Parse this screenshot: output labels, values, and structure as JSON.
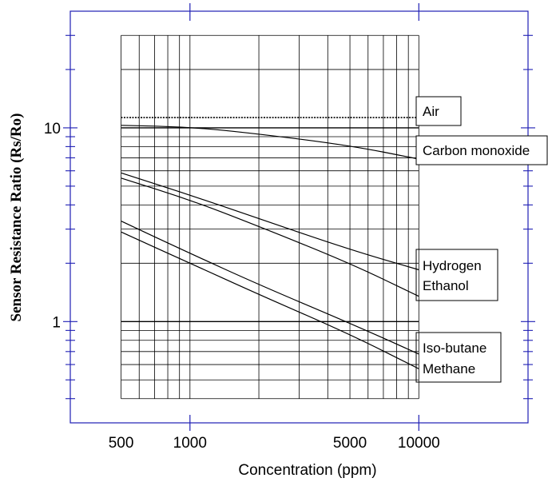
{
  "chart_data": {
    "type": "line",
    "title": "",
    "xlabel": "Concentration  (ppm)",
    "ylabel": "Sensor  Resistance  Ratio  (Rs/Ro)",
    "x_scale": "log",
    "y_scale": "log",
    "xlim": [
      300,
      30000
    ],
    "ylim": [
      0.3,
      40
    ],
    "x_tick_labels": [
      "500",
      "1000",
      "5000",
      "10000"
    ],
    "x_ticks": [
      500,
      1000,
      5000,
      10000
    ],
    "y_tick_labels": [
      "1",
      "10"
    ],
    "y_ticks": [
      1,
      10
    ],
    "grid": true,
    "legend": "labels at line ends (right)",
    "series": [
      {
        "name": "Air",
        "style": "dotted",
        "x": [
          500,
          10000
        ],
        "y": [
          11.3,
          11.3
        ]
      },
      {
        "name": "Carbon monoxide",
        "style": "solid",
        "x": [
          500,
          1000,
          2000,
          5000,
          10000
        ],
        "y": [
          10.3,
          10.1,
          9.3,
          8.1,
          6.9
        ]
      },
      {
        "name": "Hydrogen",
        "style": "solid",
        "x": [
          500,
          1000,
          2000,
          5000,
          10000
        ],
        "y": [
          5.85,
          4.5,
          3.4,
          2.35,
          1.85
        ]
      },
      {
        "name": "Ethanol",
        "style": "solid",
        "x": [
          500,
          1000,
          2000,
          5000,
          10000
        ],
        "y": [
          5.5,
          4.25,
          3.1,
          2.0,
          1.35
        ]
      },
      {
        "name": "Iso-butane",
        "style": "solid",
        "x": [
          500,
          1000,
          2000,
          5000,
          10000
        ],
        "y": [
          3.3,
          2.25,
          1.55,
          0.98,
          0.68
        ]
      },
      {
        "name": "Methane",
        "style": "solid",
        "x": [
          500,
          1000,
          2000,
          5000,
          10000
        ],
        "y": [
          2.9,
          2.0,
          1.38,
          0.86,
          0.57
        ]
      }
    ],
    "colors": {
      "frame": "#1f1fb4",
      "grid": "#000000",
      "line": "#000000"
    }
  }
}
